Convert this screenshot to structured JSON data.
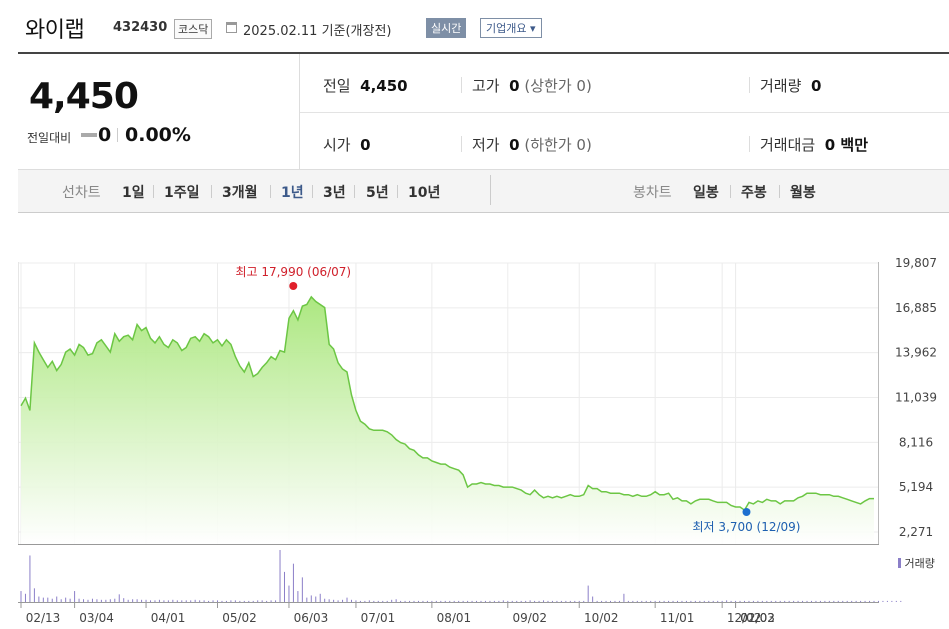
{
  "header": {
    "company": "와이랩",
    "code": "432430",
    "market": "코스닥",
    "date_text": "2025.02.11  기준(개장전)",
    "realtime_label": "실시간",
    "company_info_label": "기업개요 ▾"
  },
  "price": {
    "current": "4,450",
    "change_label": "전일대비",
    "change_value": "0",
    "change_pct": "0.00%"
  },
  "stats": {
    "prev_close_label": "전일",
    "prev_close": "4,450",
    "high_label": "고가",
    "high": "0",
    "upper_limit": "(상한가 0)",
    "volume_label": "거래량",
    "volume": "0",
    "open_label": "시가",
    "open": "0",
    "low_label": "저가",
    "low": "0",
    "lower_limit": "(하한가 0)",
    "amount_label": "거래대금",
    "amount": "0 백만"
  },
  "tabs": {
    "line_label": "선차트",
    "line_periods": [
      "1일",
      "1주일",
      "3개월",
      "1년",
      "3년",
      "5년",
      "10년"
    ],
    "active_period": "1년",
    "candle_label": "봉차트",
    "candle_periods": [
      "일봉",
      "주봉",
      "월봉"
    ]
  },
  "chart_data": {
    "type": "area",
    "color": "#6cc644",
    "fill_top": "#a8e67a",
    "x_ticks": [
      "02/13",
      "03/04",
      "04/01",
      "05/02",
      "06/03",
      "07/01",
      "08/01",
      "09/02",
      "10/02",
      "11/01",
      "12/02",
      "01/02",
      "02/03"
    ],
    "y_ticks": [
      "19,807",
      "16,885",
      "13,962",
      "11,039",
      "8,116",
      "5,194",
      "2,271"
    ],
    "ylim": [
      2271,
      19807
    ],
    "high_label": "최고 17,990 (06/07)",
    "low_label": "최저 3,700 (12/09)",
    "volume_legend": "거래량",
    "series": [
      {
        "values": [
          10500,
          11000,
          10200,
          14600,
          14000,
          13500,
          13000,
          13400,
          12800,
          13200,
          14000,
          14200,
          13800,
          14500,
          14300,
          13800,
          13900,
          14600,
          14800,
          14400,
          14000,
          15200,
          14700,
          15000,
          15100,
          14800,
          15800,
          15400,
          15600,
          14900,
          14600,
          15000,
          14500,
          14300,
          14800,
          14600,
          14100,
          14300,
          14900,
          15000,
          14700,
          15200,
          15000,
          14600,
          14800,
          14400,
          14800,
          14500,
          13700,
          13100,
          12700,
          13300,
          12400,
          12600,
          13000,
          13300,
          13700,
          13500,
          14100,
          14000,
          16200,
          16700,
          16100,
          17000,
          17100,
          17600,
          17300,
          17100,
          16900,
          14500,
          14200,
          13300,
          12900,
          12700,
          11200,
          10200,
          9500,
          9300,
          9000,
          8900,
          8900,
          8900,
          8800,
          8600,
          8300,
          8100,
          8000,
          7700,
          7600,
          7300,
          7100,
          7100,
          6900,
          6800,
          6700,
          6700,
          6500,
          6400,
          6300,
          6000,
          5200,
          5400,
          5400,
          5500,
          5400,
          5400,
          5300,
          5300,
          5200,
          5200,
          5200,
          5100,
          5000,
          4800,
          4700,
          5000,
          4700,
          4500,
          4600,
          4500,
          4600,
          4500,
          4600,
          4700,
          4600,
          4600,
          4700,
          5300,
          5100,
          5100,
          4900,
          4900,
          4800,
          4800,
          4800,
          4700,
          4700,
          4600,
          4700,
          4600,
          4600,
          4700,
          4900,
          4700,
          4700,
          4800,
          4400,
          4500,
          4300,
          4300,
          4100,
          4300,
          4400,
          4400,
          4400,
          4300,
          4200,
          4200,
          4200,
          4000,
          3900,
          3900,
          3700,
          4200,
          4100,
          4300,
          4200,
          4400,
          4300,
          4300,
          4100,
          4300,
          4300,
          4300,
          4500,
          4600,
          4800,
          4800,
          4800,
          4700,
          4700,
          4700,
          4600,
          4600,
          4500,
          4400,
          4300,
          4200,
          4100,
          4300,
          4450,
          4450
        ]
      },
      {
        "name": "거래량",
        "values": [
          20,
          15,
          85,
          25,
          10,
          8,
          8,
          6,
          10,
          5,
          8,
          6,
          20,
          6,
          5,
          4,
          6,
          5,
          4,
          4,
          5,
          6,
          14,
          7,
          4,
          5,
          5,
          4,
          4,
          3,
          3,
          4,
          3,
          3,
          4,
          3,
          3,
          3,
          3,
          4,
          3,
          3,
          2,
          3,
          3,
          2,
          2,
          3,
          3,
          2,
          2,
          2,
          2,
          3,
          3,
          2,
          3,
          3,
          95,
          55,
          30,
          70,
          20,
          45,
          8,
          12,
          10,
          15,
          6,
          5,
          4,
          3,
          4,
          8,
          4,
          3,
          2,
          2,
          3,
          2,
          2,
          2,
          2,
          4,
          5,
          2,
          2,
          2,
          2,
          2,
          2,
          2,
          2,
          2,
          2,
          2,
          2,
          2,
          2,
          2,
          2,
          2,
          2,
          2,
          2,
          2,
          2,
          2,
          3,
          2,
          2,
          2,
          2,
          2,
          3,
          2,
          2,
          3,
          2,
          2,
          2,
          2,
          2,
          2,
          2,
          2,
          2,
          30,
          10,
          2,
          2,
          2,
          2,
          2,
          2,
          15,
          2,
          2,
          2,
          2,
          2,
          2,
          2,
          2,
          2,
          2,
          2,
          2,
          2,
          2,
          2,
          2,
          2,
          2,
          2,
          2,
          2,
          2,
          3,
          2,
          2,
          2,
          2,
          2,
          2,
          2,
          2,
          2,
          2,
          2,
          2,
          2,
          2,
          2,
          2,
          2,
          2,
          2,
          2,
          2,
          2,
          2,
          2,
          2,
          2,
          2,
          2,
          2,
          2,
          2,
          2,
          2,
          2,
          2,
          2,
          2,
          2,
          2
        ]
      }
    ]
  }
}
